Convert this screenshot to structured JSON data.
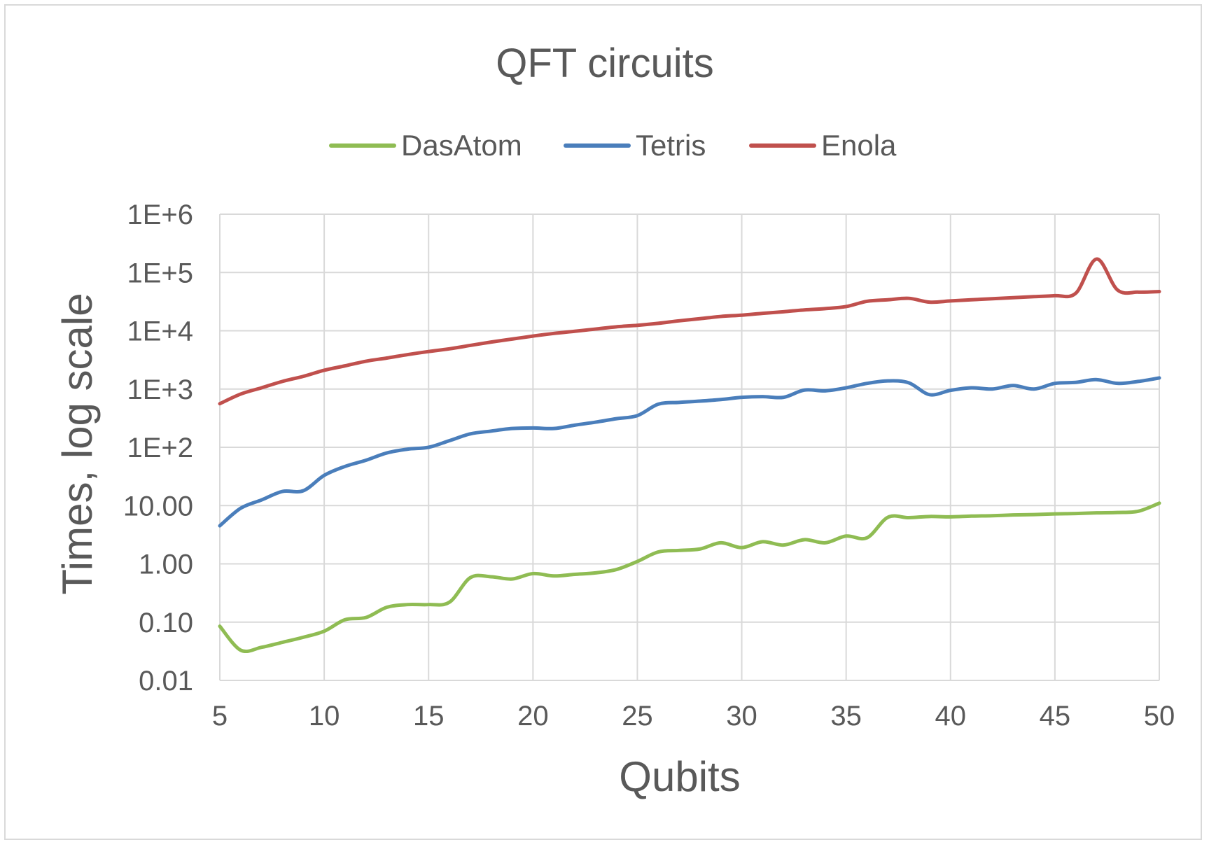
{
  "chart_data": {
    "type": "line",
    "title": "QFT circuits",
    "xlabel": "Qubits",
    "ylabel": "Times, log scale",
    "y_scale": "log",
    "ylim": [
      0.01,
      1000000
    ],
    "xlim": [
      5,
      50
    ],
    "grid": true,
    "legend_position": "top",
    "x_ticks": [
      "5",
      "10",
      "15",
      "20",
      "25",
      "30",
      "35",
      "40",
      "45",
      "50"
    ],
    "y_ticks": [
      {
        "value": 0.01,
        "label": "0.01"
      },
      {
        "value": 0.1,
        "label": "0.10"
      },
      {
        "value": 1,
        "label": "1.00"
      },
      {
        "value": 10,
        "label": "10.00"
      },
      {
        "value": 100,
        "label": "1E+2"
      },
      {
        "value": 1000,
        "label": "1E+3"
      },
      {
        "value": 10000,
        "label": "1E+4"
      },
      {
        "value": 100000,
        "label": "1E+5"
      },
      {
        "value": 1000000,
        "label": "1E+6"
      }
    ],
    "x": [
      5,
      6,
      7,
      8,
      9,
      10,
      11,
      12,
      13,
      14,
      15,
      16,
      17,
      18,
      19,
      20,
      21,
      22,
      23,
      24,
      25,
      26,
      27,
      28,
      29,
      30,
      31,
      32,
      33,
      34,
      35,
      36,
      37,
      38,
      39,
      40,
      41,
      42,
      43,
      44,
      45,
      46,
      47,
      48,
      49,
      50
    ],
    "series": [
      {
        "name": "DasAtom",
        "color": "#8fbc53",
        "values": [
          0.085,
          0.033,
          0.037,
          0.045,
          0.055,
          0.07,
          0.11,
          0.12,
          0.18,
          0.2,
          0.2,
          0.22,
          0.58,
          0.6,
          0.55,
          0.68,
          0.62,
          0.66,
          0.7,
          0.8,
          1.1,
          1.6,
          1.7,
          1.8,
          2.3,
          1.9,
          2.4,
          2.1,
          2.6,
          2.3,
          3.0,
          2.8,
          6.3,
          6.2,
          6.5,
          6.4,
          6.6,
          6.7,
          6.9,
          7.0,
          7.2,
          7.3,
          7.5,
          7.6,
          8.0,
          11.0
        ]
      },
      {
        "name": "Tetris",
        "color": "#4a7ebb",
        "values": [
          4.5,
          9.0,
          12.5,
          17.5,
          18.0,
          33.0,
          47.0,
          60.0,
          80.0,
          93.0,
          100.0,
          130.0,
          170.0,
          190.0,
          210.0,
          215.0,
          210.0,
          240.0,
          270.0,
          310.0,
          350.0,
          550.0,
          590.0,
          620.0,
          660.0,
          720.0,
          740.0,
          720.0,
          960.0,
          930.0,
          1050.0,
          1250.0,
          1380.0,
          1280.0,
          800.0,
          950.0,
          1050.0,
          1000.0,
          1150.0,
          1000.0,
          1250.0,
          1300.0,
          1450.0,
          1250.0,
          1350.0,
          1550.0
        ]
      },
      {
        "name": "Enola",
        "color": "#c0504d",
        "values": [
          560,
          820,
          1050,
          1350,
          1650,
          2100,
          2500,
          3000,
          3400,
          3900,
          4400,
          4900,
          5600,
          6400,
          7200,
          8100,
          9000,
          9800,
          10700,
          11700,
          12400,
          13400,
          14800,
          16100,
          17600,
          18500,
          19900,
          21200,
          22800,
          24000,
          26000,
          32000,
          34000,
          36000,
          31000,
          32500,
          34000,
          35500,
          37000,
          38500,
          40000,
          44000,
          170000,
          50000,
          46000,
          47000
        ]
      }
    ]
  }
}
